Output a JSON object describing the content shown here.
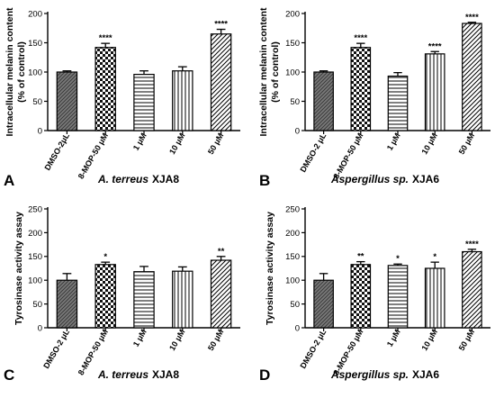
{
  "chart_data": [
    {
      "type": "bar",
      "panel": "A",
      "categories": [
        "DMSO-2μL",
        "8-MOP-50 μM",
        "1 μM",
        "10 μM",
        "50 μM"
      ],
      "values": [
        100,
        142,
        96,
        102,
        165
      ],
      "errors": [
        2,
        7,
        6,
        7,
        8
      ],
      "significance": [
        "",
        "****",
        "",
        "",
        "****"
      ],
      "ylabel_lines": [
        "Intracellular melanin content",
        "(% of control)"
      ],
      "yticks": [
        0,
        50,
        100,
        150,
        200
      ],
      "ylim": [
        0,
        200
      ],
      "caption_species": "A. terreus",
      "caption_strain": "XJA8"
    },
    {
      "type": "bar",
      "panel": "B",
      "categories": [
        "DMSO-2 μL",
        "8-MOP-50 μM",
        "1 μM",
        "10 μM",
        "50 μM"
      ],
      "values": [
        100,
        142,
        93,
        131,
        183
      ],
      "errors": [
        2,
        7,
        6,
        4,
        2
      ],
      "significance": [
        "",
        "****",
        "",
        "****",
        "****"
      ],
      "ylabel_lines": [
        "Intracellular melanin content",
        "(% of control)"
      ],
      "yticks": [
        0,
        50,
        100,
        150,
        200
      ],
      "ylim": [
        0,
        200
      ],
      "caption_species": "Aspergillus sp.",
      "caption_strain": "XJA6"
    },
    {
      "type": "bar",
      "panel": "C",
      "categories": [
        "DMSO-2 μL",
        "8-MOP-50 μM",
        "1 μM",
        "10 μM",
        "50 μM"
      ],
      "values": [
        100,
        133,
        118,
        119,
        142
      ],
      "errors": [
        14,
        5,
        11,
        9,
        8
      ],
      "significance": [
        "",
        "*",
        "",
        "",
        "**"
      ],
      "ylabel_lines": [
        "Tyrosinase activity assay"
      ],
      "yticks": [
        0,
        50,
        100,
        150,
        200,
        250
      ],
      "ylim": [
        0,
        250
      ],
      "caption_species": "A. terreus",
      "caption_strain": "XJA8"
    },
    {
      "type": "bar",
      "panel": "D",
      "categories": [
        "DMSO-2 μL",
        "8-MOP-50 μM",
        "1 μM",
        "10 μM",
        "50 μM"
      ],
      "values": [
        100,
        133,
        131,
        125,
        160
      ],
      "errors": [
        14,
        6,
        3,
        13,
        5
      ],
      "significance": [
        "",
        "**",
        "*",
        "*",
        "****"
      ],
      "ylabel_lines": [
        "Tyrosinase activity assay"
      ],
      "yticks": [
        0,
        50,
        100,
        150,
        200,
        250
      ],
      "ylim": [
        0,
        250
      ],
      "caption_species": "Aspergillus sp.",
      "caption_strain": "XJA6"
    }
  ]
}
